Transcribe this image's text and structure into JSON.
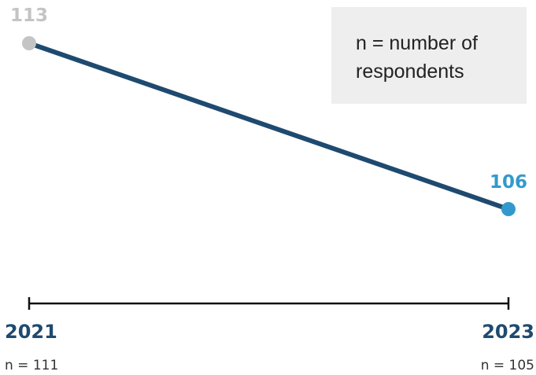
{
  "chart_data": {
    "type": "line",
    "x": [
      "2021",
      "2023"
    ],
    "series": [
      {
        "values": [
          113,
          106
        ]
      }
    ],
    "data_labels": [
      "113",
      "106"
    ],
    "tick_labels": [
      "2021",
      "2023"
    ],
    "sample_sizes": [
      "n = 111",
      "n = 105"
    ],
    "ylim": [
      100,
      114
    ],
    "grid": false,
    "legend": {
      "text": "n = number of respondents",
      "placement": "top-right"
    },
    "colors": {
      "line": "#1f4a70",
      "start_point": "#c4c4c4",
      "end_point": "#3399cc",
      "start_label": "#c4c4c4",
      "end_label": "#3399cc",
      "axis": "#111111",
      "year_text": "#1f4a70",
      "n_text": "#333333",
      "legend_bg": "#eeeeee"
    }
  }
}
